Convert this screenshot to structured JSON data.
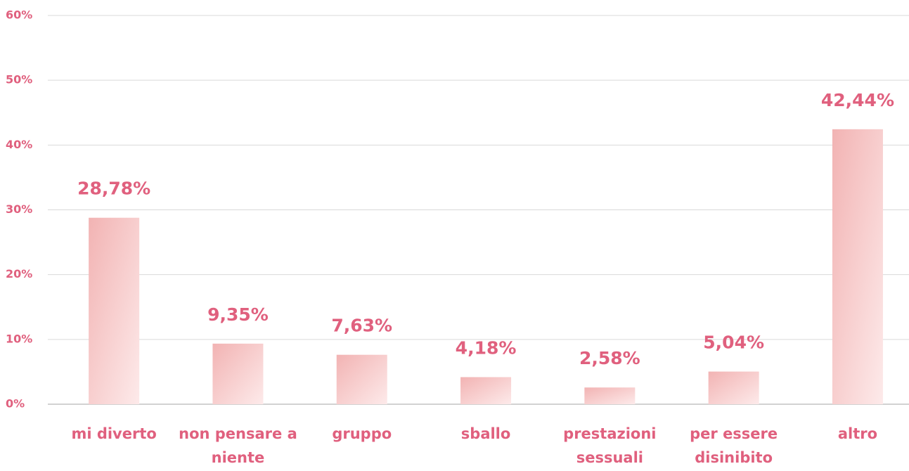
{
  "chart_data": {
    "type": "bar",
    "categories": [
      "mi diverto",
      "non pensare a niente",
      "gruppo",
      "sballo",
      "prestazioni sessuali",
      "per essere disinibito",
      "altro"
    ],
    "values": [
      28.78,
      9.35,
      7.63,
      4.18,
      2.58,
      5.04,
      42.44
    ],
    "value_labels": [
      "28,78%",
      "9,35%",
      "7,63%",
      "4,18%",
      "2,58%",
      "5,04%",
      "42,44%"
    ],
    "color": "#f2b3b3",
    "ylim": [
      0,
      60
    ],
    "yticks": [
      {
        "value": 0,
        "label": "0%"
      },
      {
        "value": 10,
        "label": "10%"
      },
      {
        "value": 20,
        "label": "20%"
      },
      {
        "value": 30,
        "label": "30%"
      },
      {
        "value": 40,
        "label": "40%"
      },
      {
        "value": 50,
        "label": "50%"
      },
      {
        "value": 60,
        "label": "60%"
      }
    ],
    "grid": true
  }
}
